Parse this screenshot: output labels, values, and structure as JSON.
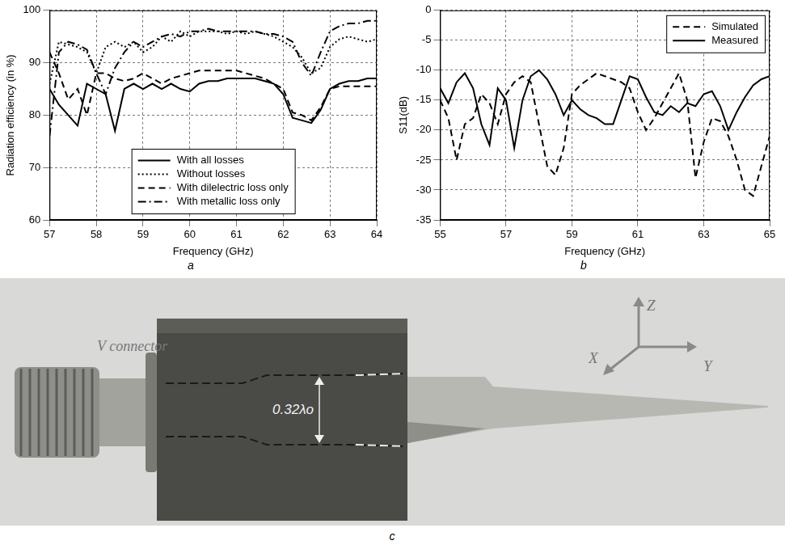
{
  "chart_data": [
    {
      "type": "line",
      "title": "a",
      "x_label": "Frequency (GHz)",
      "y_label": "Radiation efficiency (in %)",
      "x": [
        57.0,
        57.2,
        57.4,
        57.6,
        57.8,
        58.0,
        58.2,
        58.4,
        58.6,
        58.8,
        59.0,
        59.2,
        59.4,
        59.6,
        59.8,
        60.0,
        60.2,
        60.4,
        60.6,
        60.8,
        61.0,
        61.2,
        61.4,
        61.6,
        61.8,
        62.0,
        62.2,
        62.4,
        62.6,
        62.8,
        63.0,
        63.2,
        63.4,
        63.6,
        63.8,
        64.0
      ],
      "series": [
        {
          "name": "With all losses",
          "color": "#000000",
          "line_style": "solid",
          "values": [
            85,
            82,
            80,
            78,
            86,
            85,
            84,
            77,
            85,
            86,
            85,
            86,
            85,
            86,
            85,
            84.5,
            86,
            86.5,
            86.5,
            87,
            87,
            87,
            87,
            86.5,
            86,
            84,
            79.5,
            79,
            78.5,
            81,
            85,
            86,
            86.5,
            86.5,
            87,
            87
          ]
        },
        {
          "name": "Without losses",
          "color": "#000000",
          "line_style": "dotted",
          "values": [
            86,
            94,
            93.5,
            93,
            92,
            88,
            93,
            94,
            93,
            94,
            92,
            93,
            95,
            94,
            96,
            95,
            96,
            96,
            96,
            95.5,
            96,
            95.5,
            96,
            95.5,
            95,
            94,
            93,
            91,
            88,
            89,
            93,
            94.5,
            95,
            94.5,
            94,
            94.5
          ]
        },
        {
          "name": "With dilelectric loss only",
          "color": "#000000",
          "line_style": "dashed",
          "values": [
            92,
            88,
            83,
            85,
            80,
            88,
            88,
            87,
            86.5,
            87,
            88,
            87,
            86,
            87,
            87.5,
            88,
            88.5,
            88.5,
            88.5,
            88.5,
            88.5,
            88,
            87.5,
            87,
            86,
            85,
            80.5,
            80,
            79,
            81.5,
            85,
            85.5,
            85.5,
            85.5,
            85.5,
            85.5
          ]
        },
        {
          "name": "With metallic loss only",
          "color": "#000000",
          "line_style": "dashdot",
          "values": [
            76,
            92,
            94,
            93.5,
            92.5,
            88,
            84,
            89,
            92,
            94,
            93,
            94,
            95,
            95.5,
            95,
            96,
            96,
            96.5,
            96,
            96,
            96,
            96,
            96,
            95.5,
            95.5,
            95,
            94,
            90,
            87.5,
            92,
            96,
            97,
            97.5,
            97.5,
            98,
            98
          ]
        }
      ],
      "xlim": [
        57,
        64
      ],
      "xticks": [
        57,
        58,
        59,
        60,
        61,
        62,
        63,
        64
      ],
      "ylim": [
        60,
        100
      ],
      "yticks": [
        60,
        70,
        80,
        90,
        100
      ],
      "grid": true,
      "legend": "lower-center"
    },
    {
      "type": "line",
      "title": "b",
      "x_label": "Frequency (GHz)",
      "y_label": "S11(dB)",
      "x": [
        55,
        55.25,
        55.5,
        55.75,
        56,
        56.25,
        56.5,
        56.75,
        57,
        57.25,
        57.5,
        57.75,
        58,
        58.25,
        58.5,
        58.75,
        59,
        59.25,
        59.5,
        59.75,
        60,
        60.25,
        60.5,
        60.75,
        61,
        61.25,
        61.5,
        61.75,
        62,
        62.25,
        62.5,
        62.75,
        63,
        63.25,
        63.5,
        63.75,
        64,
        64.25,
        64.5,
        64.75,
        65
      ],
      "series": [
        {
          "name": "Simulated",
          "color": "#000000",
          "line_style": "dashed",
          "values": [
            -15,
            -18,
            -25,
            -19,
            -18,
            -14,
            -15.5,
            -19,
            -14,
            -12,
            -11,
            -12,
            -19,
            -26,
            -27.5,
            -23,
            -14,
            -12.5,
            -11.5,
            -10.5,
            -11,
            -11.5,
            -12,
            -13,
            -17,
            -20,
            -18,
            -15.5,
            -13,
            -10.5,
            -15,
            -28,
            -22,
            -18,
            -18.5,
            -21,
            -25,
            -30,
            -31,
            -26,
            -21
          ]
        },
        {
          "name": "Measured",
          "color": "#000000",
          "line_style": "solid",
          "values": [
            -13,
            -15.5,
            -12,
            -10.5,
            -13,
            -19,
            -22.5,
            -13,
            -15,
            -23,
            -15,
            -11,
            -10,
            -11.5,
            -14,
            -17.5,
            -15,
            -16.5,
            -17.5,
            -18,
            -19,
            -19,
            -15,
            -11,
            -11.5,
            -14.5,
            -17,
            -17.5,
            -16,
            -17,
            -15.5,
            -16,
            -14,
            -13.5,
            -16,
            -20,
            -17,
            -14.5,
            -12.5,
            -11.5,
            -11
          ]
        }
      ],
      "xlim": [
        55,
        65
      ],
      "xticks": [
        55,
        57,
        59,
        61,
        63,
        65
      ],
      "ylim": [
        -35,
        0
      ],
      "yticks": [
        -35,
        -30,
        -25,
        -20,
        -15,
        -10,
        -5,
        0
      ],
      "grid": true,
      "legend": "upper-right"
    }
  ],
  "diagram": {
    "title": "c",
    "connector_label": "V connector",
    "width_label": "0.32λo",
    "axis_labels": [
      "X",
      "Y",
      "Z"
    ]
  }
}
